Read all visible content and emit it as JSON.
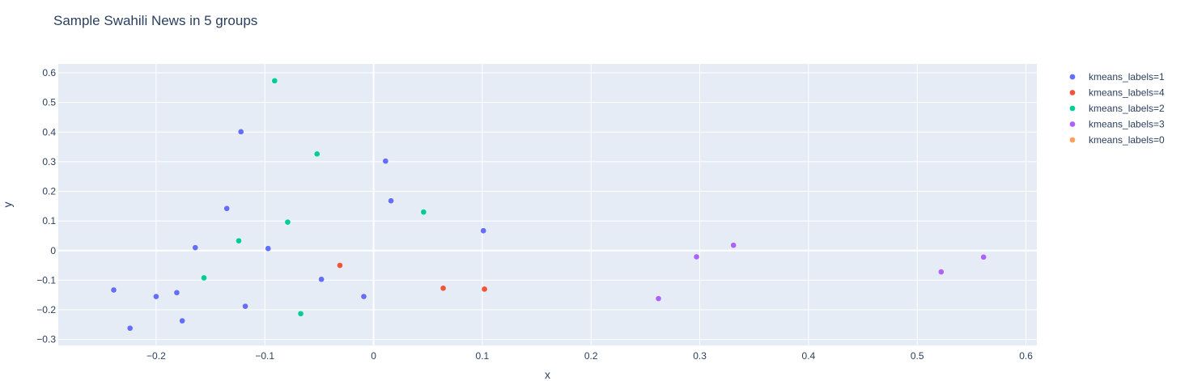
{
  "chart_data": {
    "type": "scatter",
    "title": "Sample Swahili News in 5 groups",
    "xlabel": "x",
    "ylabel": "y",
    "xlim": [
      -0.29,
      0.61
    ],
    "ylim": [
      -0.32,
      0.63
    ],
    "x_ticks": [
      -0.2,
      -0.1,
      0,
      0.1,
      0.2,
      0.3,
      0.4,
      0.5,
      0.6
    ],
    "x_tick_labels": [
      "−0.2",
      "−0.1",
      "0",
      "0.1",
      "0.2",
      "0.3",
      "0.4",
      "0.5",
      "0.6"
    ],
    "y_ticks": [
      -0.3,
      -0.2,
      -0.1,
      0,
      0.1,
      0.2,
      0.3,
      0.4,
      0.5,
      0.6
    ],
    "y_tick_labels": [
      "−0.3",
      "−0.2",
      "−0.1",
      "0",
      "0.1",
      "0.2",
      "0.3",
      "0.4",
      "0.5",
      "0.6"
    ],
    "grid": true,
    "legend_position": "right",
    "plot_background": "#e5ecf6",
    "series": [
      {
        "name": "kmeans_labels=1",
        "color": "#636efa",
        "points": [
          [
            -0.239,
            -0.133
          ],
          [
            -0.224,
            -0.262
          ],
          [
            -0.2,
            -0.155
          ],
          [
            -0.181,
            -0.142
          ],
          [
            -0.176,
            -0.237
          ],
          [
            -0.164,
            0.01
          ],
          [
            -0.135,
            0.142
          ],
          [
            -0.122,
            0.401
          ],
          [
            -0.118,
            -0.188
          ],
          [
            -0.097,
            0.007
          ],
          [
            -0.048,
            -0.097
          ],
          [
            -0.009,
            -0.155
          ],
          [
            0.011,
            0.302
          ],
          [
            0.016,
            0.168
          ],
          [
            0.101,
            0.067
          ]
        ]
      },
      {
        "name": "kmeans_labels=4",
        "color": "#ef553b",
        "points": [
          [
            -0.031,
            -0.05
          ],
          [
            0.064,
            -0.127
          ],
          [
            0.102,
            -0.13
          ]
        ]
      },
      {
        "name": "kmeans_labels=2",
        "color": "#00cc96",
        "points": [
          [
            -0.156,
            -0.092
          ],
          [
            -0.124,
            0.033
          ],
          [
            -0.091,
            0.573
          ],
          [
            -0.079,
            0.096
          ],
          [
            -0.067,
            -0.213
          ],
          [
            -0.052,
            0.326
          ],
          [
            0.046,
            0.13
          ]
        ]
      },
      {
        "name": "kmeans_labels=3",
        "color": "#ab63fa",
        "points": [
          [
            0.262,
            -0.162
          ],
          [
            0.297,
            -0.021
          ],
          [
            0.331,
            0.018
          ],
          [
            0.522,
            -0.072
          ],
          [
            0.561,
            -0.022
          ]
        ]
      },
      {
        "name": "kmeans_labels=0",
        "color": "#ffa15a",
        "points": []
      }
    ]
  }
}
